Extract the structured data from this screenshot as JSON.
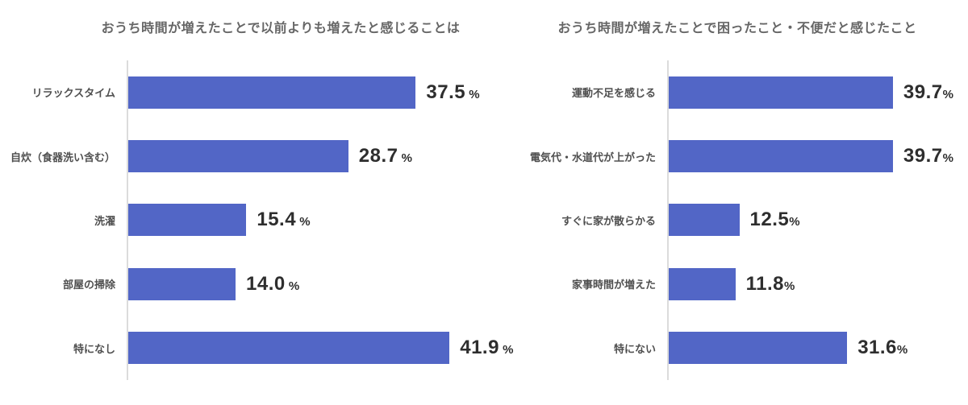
{
  "colors": {
    "bar": "#5266c6",
    "axis_line": "#dcdcdc",
    "title_text": "#666666",
    "category_text": "#4f4f4f",
    "value_text": "#2e2e2e",
    "page_bg": "#ffffff"
  },
  "chart_data": [
    {
      "type": "bar",
      "orientation": "horizontal",
      "grid": false,
      "legend": null,
      "title": "おうち時間が増えたことで以前よりも増えたと感じることは",
      "categories": [
        "リラックスタイム",
        "自炊（食器洗い含む）",
        "洗濯",
        "部屋の掃除",
        "特になし"
      ],
      "values": [
        37.5,
        28.7,
        15.4,
        14.0,
        41.9
      ],
      "value_labels": [
        "37.5",
        "28.7",
        "15.4",
        "14.0",
        "41.9"
      ],
      "unit": "%",
      "unit_display": " %",
      "xlim": [
        0,
        46.4
      ],
      "xlabel": "",
      "ylabel": ""
    },
    {
      "type": "bar",
      "orientation": "horizontal",
      "grid": false,
      "legend": null,
      "title": "おうち時間が増えたことで困ったこと・不便だと感じたこと",
      "categories": [
        "運動不足を感じる",
        "電気代・水道代が上がった",
        "すぐに家が散らかる",
        "家事時間が増えた",
        "特にない"
      ],
      "values": [
        39.7,
        39.7,
        12.5,
        11.8,
        31.6
      ],
      "value_labels": [
        "39.7",
        "39.7",
        "12.5",
        "11.8",
        "31.6"
      ],
      "unit": "%",
      "unit_display": "%",
      "xlim": [
        0,
        53
      ],
      "xlabel": "",
      "ylabel": ""
    }
  ]
}
